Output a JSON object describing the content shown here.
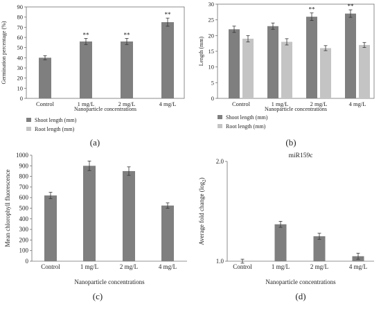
{
  "colors": {
    "dark_bar": "#7f7f7f",
    "light_bar": "#c4c4c4",
    "axis": "#6f6f6f",
    "error_bar": "#333333",
    "text": "#222222"
  },
  "chart_data": [
    {
      "panel_label": "(a)",
      "type": "bar",
      "ylabel": "Germination percentage (%)",
      "xlabel": "Nanoparticle concentrations",
      "ylim": [
        0,
        90
      ],
      "yticks": [
        0,
        10,
        20,
        30,
        40,
        50,
        60,
        70,
        80,
        90
      ],
      "categories": [
        "Control",
        "1 mg/L",
        "2 mg/L",
        "4 mg/L"
      ],
      "series": [
        {
          "values": [
            40,
            56,
            56,
            75
          ],
          "errors": [
            2,
            3,
            3,
            4
          ],
          "significance": [
            "",
            "**",
            "**",
            "**"
          ]
        }
      ]
    },
    {
      "panel_label": "(b)",
      "type": "bar",
      "ylabel": "Length (mm)",
      "xlabel": "Nanoparticle concentrations",
      "ylim": [
        0,
        30
      ],
      "yticks": [
        0,
        5,
        10,
        15,
        20,
        25,
        30
      ],
      "categories": [
        "Control",
        "1 mg/L",
        "2 mg/L",
        "4 mg/L"
      ],
      "series": [
        {
          "name": "Shoot length (mm)",
          "values": [
            22,
            23,
            26,
            27
          ],
          "errors": [
            1.0,
            1.0,
            1.2,
            1.2
          ],
          "significance": [
            "",
            "",
            "**",
            "**"
          ]
        },
        {
          "name": "Root length (mm)",
          "values": [
            19,
            18,
            16,
            17
          ],
          "errors": [
            1.0,
            1.0,
            0.8,
            0.8
          ],
          "significance": [
            "",
            "",
            "",
            ""
          ]
        }
      ],
      "legend": "bottom-left"
    },
    {
      "panel_label": "(c)",
      "type": "bar",
      "ylabel": "Mean chlorophyll fluorescence",
      "xlabel": "Nanoparticle concentrations",
      "ylim": [
        0,
        1000
      ],
      "yticks": [
        0,
        100,
        200,
        300,
        400,
        500,
        600,
        700,
        800,
        900,
        1000
      ],
      "categories": [
        "Control",
        "1 mg/L",
        "2 mg/L",
        "4 mg/L"
      ],
      "series": [
        {
          "values": [
            620,
            900,
            850,
            525
          ],
          "errors": [
            30,
            45,
            40,
            25
          ],
          "significance": [
            "",
            "",
            "",
            ""
          ]
        }
      ]
    },
    {
      "panel_label": "(d)",
      "type": "bar",
      "title": "miR159c",
      "ylabel": "Average fold change (log",
      "ylabel_sub": "2",
      "ylabel_end": ")",
      "xlabel": "Nanoparticle concentrations",
      "ylim": [
        1.0,
        2.0
      ],
      "yticks": [
        1.0,
        2.0
      ],
      "ytick_labels": [
        "1.0",
        "2.0"
      ],
      "categories": [
        "Control",
        "1 mg/L",
        "2 mg/L",
        "4 mg/L"
      ],
      "series": [
        {
          "values": [
            1.0,
            1.37,
            1.25,
            1.05
          ],
          "errors": [
            0.02,
            0.03,
            0.03,
            0.03
          ],
          "significance": [
            "",
            "",
            "",
            ""
          ]
        }
      ]
    }
  ]
}
